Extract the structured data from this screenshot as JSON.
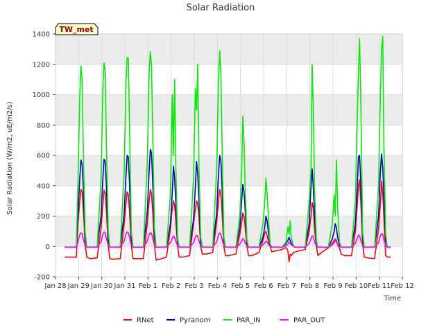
{
  "chart_data": {
    "type": "line",
    "title": "Solar Radiation",
    "xlabel": "Time",
    "ylabel": "Solar Radiation (W/m2, uE/m2/s)",
    "badge": "TW_met",
    "ylim": [
      -200,
      1400
    ],
    "yticks": [
      -200,
      0,
      200,
      400,
      600,
      800,
      1000,
      1200,
      1400
    ],
    "xlim": [
      0,
      15
    ],
    "xtick_labels": [
      "Jan 28",
      "Jan 29",
      "Jan 30",
      "Jan 31",
      "Feb 1",
      "Feb 2",
      "Feb 3",
      "Feb 4",
      "Feb 5",
      "Feb 6",
      "Feb 7",
      "Feb 8",
      "Feb 9",
      "Feb 10",
      "Feb 11",
      "Feb 12"
    ],
    "grid": true,
    "legend_position": "bottom",
    "series": [
      {
        "name": "RNet",
        "color": "#ff0000",
        "x": [
          0.4,
          0.9,
          0.97,
          1.05,
          1.1,
          1.15,
          1.2,
          1.28,
          1.35,
          1.5,
          1.8,
          1.97,
          2.05,
          2.1,
          2.15,
          2.2,
          2.28,
          2.35,
          2.5,
          2.8,
          2.97,
          3.05,
          3.1,
          3.15,
          3.2,
          3.28,
          3.35,
          3.5,
          3.8,
          3.97,
          4.05,
          4.1,
          4.15,
          4.2,
          4.28,
          4.35,
          4.5,
          4.8,
          4.97,
          5.05,
          5.1,
          5.15,
          5.2,
          5.28,
          5.35,
          5.5,
          5.8,
          5.97,
          6.05,
          6.1,
          6.15,
          6.2,
          6.28,
          6.35,
          6.5,
          6.8,
          6.97,
          7.05,
          7.1,
          7.15,
          7.2,
          7.28,
          7.35,
          7.5,
          7.8,
          7.97,
          8.05,
          8.1,
          8.15,
          8.2,
          8.28,
          8.35,
          8.5,
          8.8,
          8.97,
          9.05,
          9.1,
          9.15,
          9.2,
          9.28,
          9.35,
          9.5,
          9.8,
          9.9,
          10.0,
          10.05,
          10.1,
          10.15,
          10.2,
          10.3,
          10.5,
          10.8,
          10.97,
          11.05,
          11.1,
          11.15,
          11.2,
          11.28,
          11.35,
          11.5,
          11.8,
          11.97,
          12.05,
          12.1,
          12.15,
          12.2,
          12.28,
          12.35,
          12.5,
          12.8,
          12.97,
          13.05,
          13.1,
          13.15,
          13.2,
          13.28,
          13.35,
          13.5,
          13.8,
          13.97,
          14.05,
          14.1,
          14.15,
          14.2,
          14.28,
          14.35,
          14.5
        ],
        "y": [
          -70,
          -70,
          150,
          300,
          375,
          360,
          250,
          20,
          -70,
          -80,
          -75,
          120,
          280,
          370,
          350,
          240,
          10,
          -80,
          -85,
          -80,
          150,
          290,
          360,
          340,
          230,
          10,
          -80,
          -80,
          -80,
          150,
          300,
          375,
          350,
          240,
          10,
          -90,
          -85,
          -70,
          120,
          250,
          300,
          270,
          180,
          0,
          -70,
          -70,
          -60,
          150,
          250,
          300,
          280,
          200,
          0,
          -50,
          -50,
          -40,
          160,
          300,
          375,
          340,
          230,
          0,
          -60,
          -60,
          -50,
          80,
          160,
          220,
          200,
          130,
          0,
          -60,
          -60,
          -40,
          40,
          90,
          100,
          70,
          40,
          0,
          -35,
          -30,
          -20,
          -10,
          -10,
          -30,
          -100,
          -50,
          -60,
          -40,
          -30,
          -20,
          100,
          200,
          290,
          250,
          120,
          0,
          -60,
          -40,
          -10,
          20,
          40,
          50,
          40,
          10,
          -10,
          -50,
          -60,
          -60,
          100,
          280,
          400,
          440,
          300,
          20,
          -70,
          -75,
          -80,
          120,
          280,
          430,
          350,
          200,
          -60,
          -70,
          -70
        ]
      },
      {
        "name": "Pyranom",
        "color": "#0000cc",
        "x": [
          0.4,
          0.9,
          0.97,
          1.05,
          1.1,
          1.15,
          1.2,
          1.28,
          1.35,
          1.8,
          1.97,
          2.05,
          2.1,
          2.15,
          2.2,
          2.28,
          2.35,
          2.8,
          2.97,
          3.05,
          3.1,
          3.15,
          3.2,
          3.28,
          3.35,
          3.8,
          3.97,
          4.05,
          4.1,
          4.15,
          4.2,
          4.28,
          4.35,
          4.8,
          4.97,
          5.05,
          5.1,
          5.15,
          5.2,
          5.28,
          5.35,
          5.8,
          5.97,
          6.05,
          6.1,
          6.15,
          6.2,
          6.28,
          6.35,
          6.8,
          6.97,
          7.05,
          7.1,
          7.15,
          7.2,
          7.28,
          7.35,
          7.8,
          7.97,
          8.05,
          8.1,
          8.15,
          8.2,
          8.28,
          8.35,
          8.8,
          8.97,
          9.05,
          9.1,
          9.15,
          9.2,
          9.28,
          9.35,
          9.8,
          9.97,
          10.05,
          10.1,
          10.15,
          10.2,
          10.28,
          10.35,
          10.8,
          10.97,
          11.05,
          11.1,
          11.15,
          11.2,
          11.28,
          11.35,
          11.8,
          11.97,
          12.05,
          12.1,
          12.15,
          12.2,
          12.28,
          12.35,
          12.8,
          12.97,
          13.05,
          13.1,
          13.15,
          13.2,
          13.28,
          13.35,
          13.8,
          13.97,
          14.05,
          14.1,
          14.15,
          14.2,
          14.28,
          14.35,
          14.5
        ],
        "y": [
          -5,
          -5,
          200,
          450,
          570,
          540,
          400,
          50,
          -5,
          -5,
          200,
          450,
          575,
          560,
          400,
          50,
          -5,
          -5,
          220,
          480,
          600,
          590,
          420,
          50,
          -5,
          -5,
          230,
          500,
          640,
          620,
          440,
          60,
          -5,
          -5,
          150,
          350,
          530,
          450,
          300,
          30,
          -5,
          -5,
          180,
          400,
          560,
          480,
          320,
          30,
          -5,
          -5,
          220,
          480,
          600,
          570,
          400,
          40,
          -5,
          -5,
          120,
          300,
          410,
          360,
          250,
          20,
          -5,
          -5,
          60,
          130,
          200,
          170,
          100,
          10,
          -5,
          -5,
          20,
          40,
          60,
          40,
          20,
          5,
          -5,
          -5,
          150,
          400,
          510,
          380,
          220,
          20,
          -5,
          -5,
          50,
          100,
          150,
          120,
          60,
          10,
          -5,
          -5,
          150,
          400,
          590,
          600,
          430,
          50,
          -5,
          -5,
          200,
          500,
          610,
          520,
          350,
          40,
          -5,
          -5
        ]
      },
      {
        "name": "PAR_IN",
        "color": "#00ee00",
        "x": [
          0.4,
          0.9,
          0.97,
          1.05,
          1.1,
          1.15,
          1.2,
          1.28,
          1.35,
          1.8,
          1.97,
          2.05,
          2.1,
          2.15,
          2.2,
          2.28,
          2.35,
          2.8,
          2.97,
          3.05,
          3.1,
          3.15,
          3.2,
          3.28,
          3.35,
          3.8,
          3.97,
          4.05,
          4.1,
          4.15,
          4.2,
          4.28,
          4.35,
          4.8,
          4.97,
          5.05,
          5.1,
          5.15,
          5.2,
          5.28,
          5.35,
          5.8,
          5.97,
          6.05,
          6.1,
          6.15,
          6.2,
          6.28,
          6.35,
          6.8,
          6.97,
          7.05,
          7.1,
          7.15,
          7.2,
          7.28,
          7.35,
          7.8,
          7.97,
          8.05,
          8.1,
          8.15,
          8.2,
          8.28,
          8.35,
          8.8,
          8.97,
          9.05,
          9.1,
          9.15,
          9.2,
          9.28,
          9.35,
          9.8,
          9.97,
          10.05,
          10.1,
          10.15,
          10.2,
          10.28,
          10.35,
          10.8,
          10.97,
          11.05,
          11.1,
          11.15,
          11.2,
          11.28,
          11.35,
          11.8,
          11.97,
          12.05,
          12.1,
          12.15,
          12.2,
          12.28,
          12.35,
          12.8,
          12.97,
          13.05,
          13.1,
          13.15,
          13.2,
          13.28,
          13.35,
          13.8,
          13.97,
          14.05,
          14.1,
          14.15,
          14.2,
          14.28,
          14.35,
          14.5
        ],
        "y": [
          -5,
          -5,
          400,
          1000,
          1190,
          1100,
          650,
          100,
          -5,
          -5,
          450,
          1050,
          1210,
          1150,
          700,
          100,
          -5,
          -5,
          500,
          1100,
          1245,
          1240,
          800,
          100,
          -5,
          -5,
          550,
          1150,
          1285,
          1200,
          800,
          120,
          -5,
          -5,
          350,
          1000,
          600,
          1100,
          550,
          50,
          -5,
          -5,
          450,
          1040,
          900,
          1200,
          550,
          60,
          -5,
          -5,
          500,
          1100,
          1290,
          1150,
          700,
          60,
          -5,
          -5,
          200,
          500,
          860,
          700,
          400,
          40,
          -5,
          -5,
          150,
          300,
          450,
          350,
          200,
          20,
          -5,
          -5,
          30,
          130,
          80,
          170,
          50,
          10,
          -5,
          -5,
          300,
          500,
          1200,
          900,
          400,
          40,
          -5,
          -5,
          150,
          340,
          200,
          570,
          250,
          30,
          -5,
          -5,
          300,
          850,
          1150,
          1370,
          1000,
          100,
          -5,
          -5,
          400,
          1000,
          1300,
          1385,
          700,
          80,
          -5,
          -5
        ]
      },
      {
        "name": "PAR_OUT",
        "color": "#ff00ff",
        "x": [
          0.4,
          0.9,
          0.97,
          1.05,
          1.1,
          1.15,
          1.2,
          1.28,
          1.35,
          1.8,
          1.97,
          2.05,
          2.1,
          2.15,
          2.2,
          2.28,
          2.35,
          2.8,
          2.97,
          3.05,
          3.1,
          3.15,
          3.2,
          3.28,
          3.35,
          3.8,
          3.97,
          4.05,
          4.1,
          4.15,
          4.2,
          4.28,
          4.35,
          4.8,
          4.97,
          5.05,
          5.1,
          5.15,
          5.2,
          5.28,
          5.35,
          5.8,
          5.97,
          6.05,
          6.1,
          6.15,
          6.2,
          6.28,
          6.35,
          6.8,
          6.97,
          7.05,
          7.1,
          7.15,
          7.2,
          7.28,
          7.35,
          7.8,
          7.97,
          8.05,
          8.1,
          8.15,
          8.2,
          8.28,
          8.35,
          8.8,
          8.97,
          9.05,
          9.1,
          9.15,
          9.2,
          9.28,
          9.35,
          9.8,
          9.97,
          10.05,
          10.1,
          10.15,
          10.2,
          10.28,
          10.35,
          10.8,
          10.97,
          11.05,
          11.1,
          11.15,
          11.2,
          11.28,
          11.35,
          11.8,
          11.97,
          12.05,
          12.1,
          12.15,
          12.2,
          12.28,
          12.35,
          12.8,
          12.97,
          13.05,
          13.1,
          13.15,
          13.2,
          13.28,
          13.35,
          13.8,
          13.97,
          14.05,
          14.1,
          14.15,
          14.2,
          14.28,
          14.35,
          14.5
        ],
        "y": [
          -5,
          -5,
          30,
          75,
          90,
          85,
          50,
          5,
          -5,
          -5,
          30,
          80,
          95,
          90,
          55,
          5,
          -5,
          -5,
          35,
          85,
          95,
          90,
          60,
          5,
          -5,
          -5,
          35,
          80,
          90,
          85,
          55,
          5,
          -5,
          -5,
          25,
          55,
          70,
          60,
          35,
          3,
          -5,
          -5,
          25,
          60,
          75,
          65,
          40,
          3,
          -5,
          -5,
          30,
          75,
          90,
          80,
          50,
          5,
          -5,
          -5,
          15,
          35,
          50,
          45,
          25,
          3,
          -5,
          -5,
          10,
          25,
          35,
          30,
          15,
          2,
          -5,
          -5,
          5,
          15,
          30,
          20,
          10,
          2,
          -5,
          -5,
          20,
          50,
          70,
          60,
          35,
          3,
          -5,
          -5,
          10,
          25,
          40,
          30,
          15,
          2,
          -5,
          -5,
          20,
          55,
          75,
          70,
          40,
          5,
          -5,
          -5,
          25,
          70,
          85,
          80,
          45,
          5,
          -5,
          -5
        ]
      }
    ]
  }
}
